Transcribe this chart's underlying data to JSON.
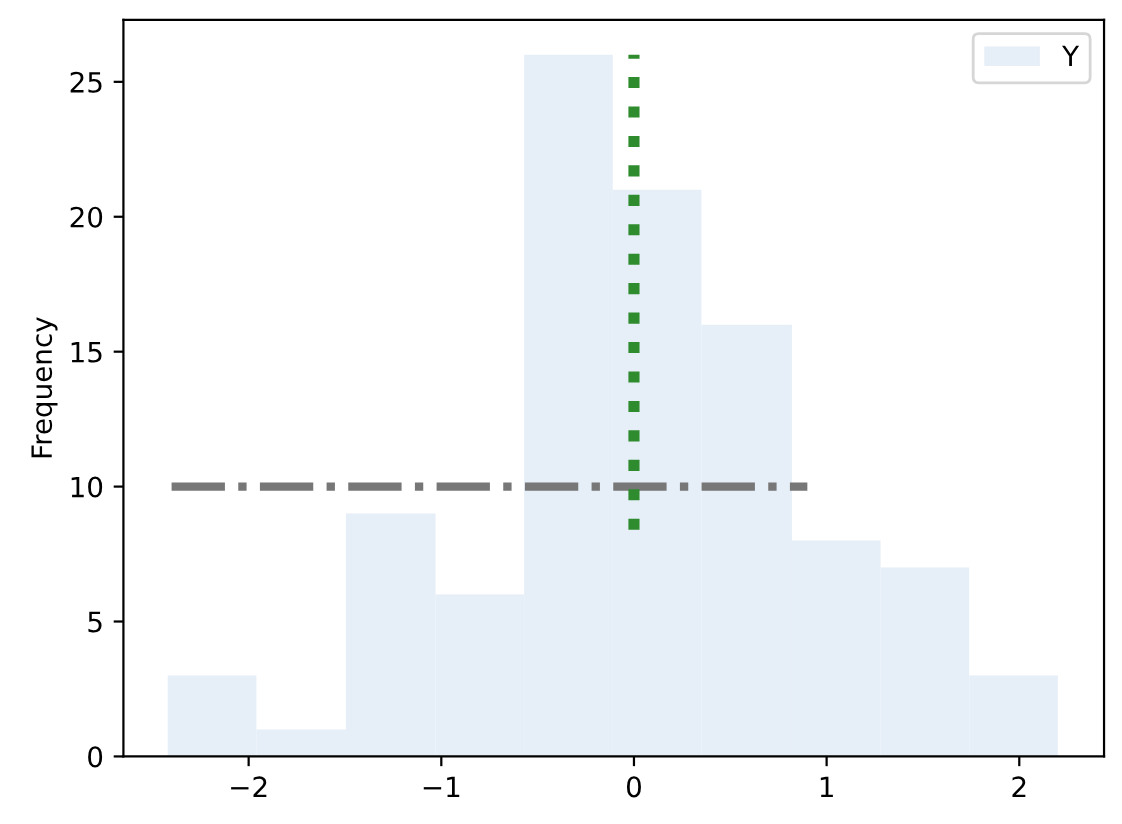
{
  "chart_data": {
    "type": "histogram",
    "ylabel": "Frequency",
    "bins": [
      -2.42,
      -1.96,
      -1.495,
      -1.03,
      -0.57,
      -0.11,
      0.35,
      0.82,
      1.28,
      1.74,
      2.2
    ],
    "series": [
      {
        "name": "Y",
        "color": "#e6eef7",
        "values": [
          3,
          1,
          9,
          6,
          26,
          21,
          16,
          8,
          7,
          3
        ]
      },
      {
        "type": "line",
        "color": "#777777",
        "line_style": "dashdot",
        "x": [
          -2.4,
          0.9
        ],
        "values": [
          10,
          10
        ]
      },
      {
        "type": "line",
        "color": "#2e8b2e",
        "line_style": "dotted",
        "x": [
          0,
          0
        ],
        "values": [
          8.4,
          26
        ]
      }
    ],
    "xlim": [
      -2.65,
      2.44
    ],
    "xticks": [
      {
        "value": -2,
        "label": "−2"
      },
      {
        "value": -1,
        "label": "−1"
      },
      0,
      1,
      2
    ],
    "ylim": [
      0,
      27.3
    ],
    "yticks": [
      0,
      5,
      10,
      15,
      20,
      25
    ],
    "legend": "top right",
    "grid": false
  }
}
